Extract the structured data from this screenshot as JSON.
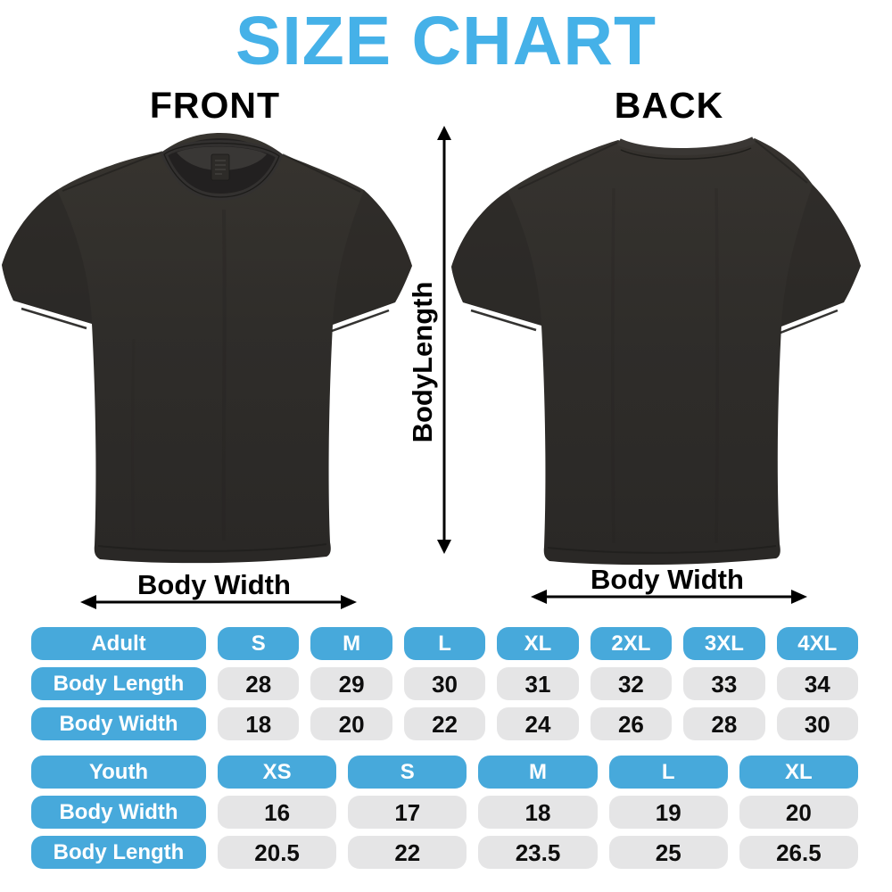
{
  "title": "SIZE CHART",
  "front": {
    "heading": "FRONT",
    "body_width_label": "Body Width"
  },
  "back": {
    "heading": "BACK",
    "body_width_label": "Body Width"
  },
  "body_length_label": "BodyLength",
  "adult_table": {
    "header": [
      "Adult",
      "S",
      "M",
      "L",
      "XL",
      "2XL",
      "3XL",
      "4XL"
    ],
    "rows": [
      {
        "label": "Body Length",
        "values": [
          "28",
          "29",
          "30",
          "31",
          "32",
          "33",
          "34"
        ]
      },
      {
        "label": "Body Width",
        "values": [
          "18",
          "20",
          "22",
          "24",
          "26",
          "28",
          "30"
        ]
      }
    ]
  },
  "youth_table": {
    "header": [
      "Youth",
      "XS",
      "S",
      "M",
      "L",
      "XL"
    ],
    "rows": [
      {
        "label": "Body Width",
        "values": [
          "16",
          "17",
          "18",
          "19",
          "20"
        ]
      },
      {
        "label": "Body Length",
        "values": [
          "20.5",
          "22",
          "23.5",
          "25",
          "26.5"
        ]
      }
    ]
  },
  "chart_data": [
    {
      "type": "table",
      "title": "Adult",
      "columns": [
        "Adult",
        "S",
        "M",
        "L",
        "XL",
        "2XL",
        "3XL",
        "4XL"
      ],
      "rows": [
        [
          "Body Length",
          28,
          29,
          30,
          31,
          32,
          33,
          34
        ],
        [
          "Body Width",
          18,
          20,
          22,
          24,
          26,
          28,
          30
        ]
      ]
    },
    {
      "type": "table",
      "title": "Youth",
      "columns": [
        "Youth",
        "XS",
        "S",
        "M",
        "L",
        "XL"
      ],
      "rows": [
        [
          "Body Width",
          16,
          17,
          18,
          19,
          20
        ],
        [
          "Body Length",
          20.5,
          22,
          23.5,
          25,
          26.5
        ]
      ]
    }
  ],
  "colors": {
    "title_blue": "#45B1E8",
    "pill_blue": "#47A9DB",
    "pill_gray": "#E5E5E6",
    "shirt_dark": "#2E2C2A",
    "annotation_black": "#000000"
  }
}
